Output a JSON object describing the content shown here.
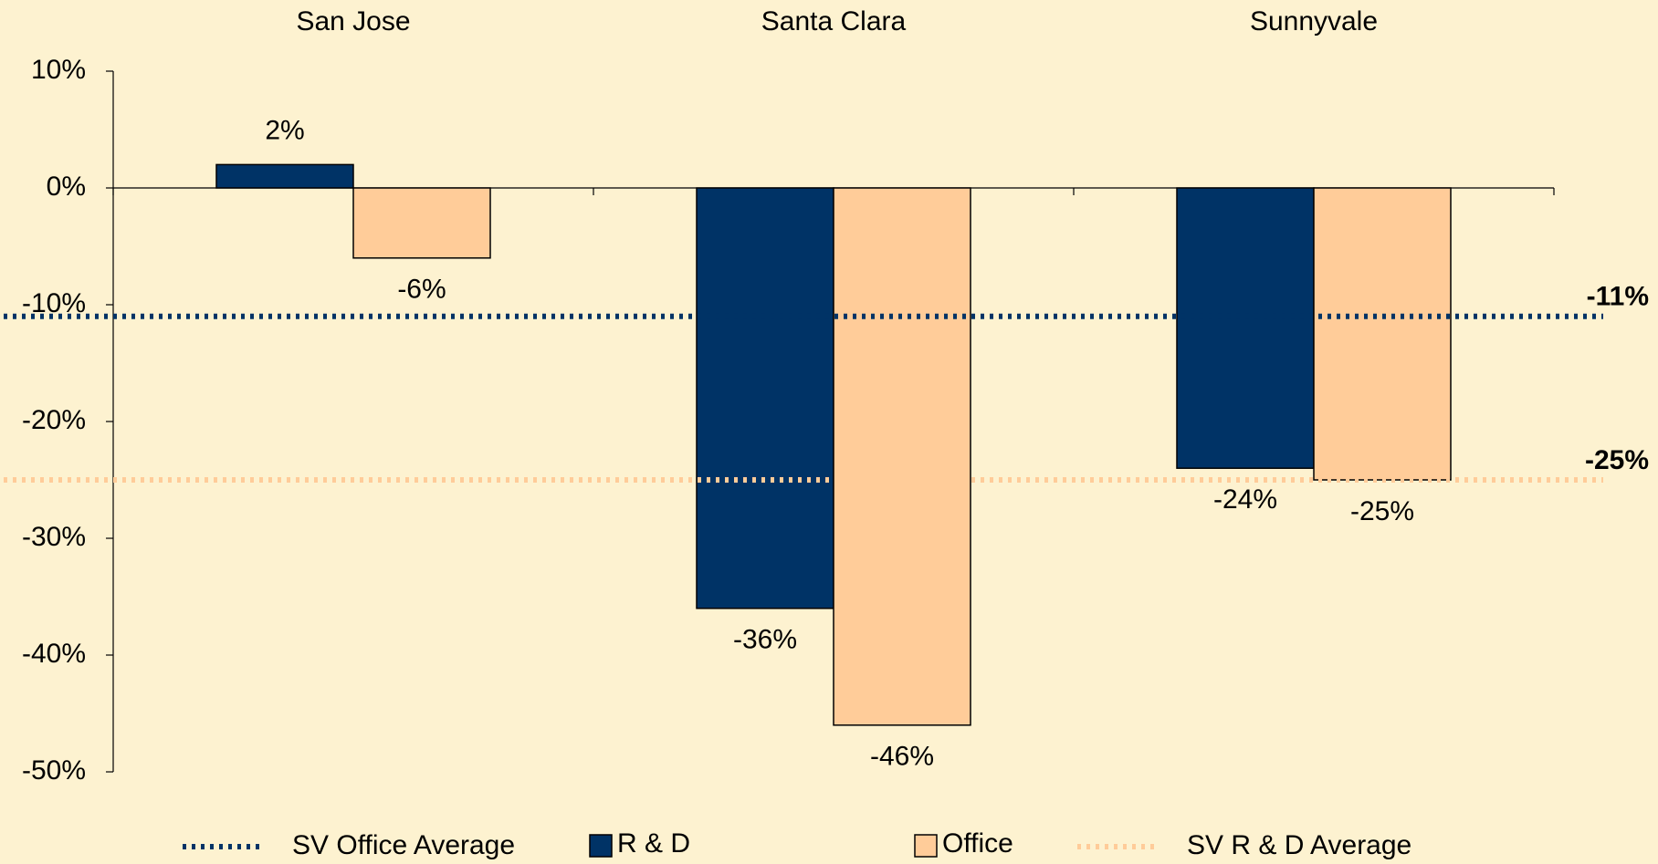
{
  "chart_data": {
    "type": "bar",
    "categories": [
      "San Jose",
      "Santa Clara",
      "Sunnyvale"
    ],
    "series": [
      {
        "name": "R & D",
        "color": "#003366",
        "values": [
          2,
          -36,
          -24
        ],
        "value_labels": [
          "2%",
          "-36%",
          "-24%"
        ]
      },
      {
        "name": "Office",
        "color": "#FFCC99",
        "values": [
          -6,
          -46,
          -25
        ],
        "value_labels": [
          "-6%",
          "-46%",
          "-25%"
        ]
      }
    ],
    "reference_lines": [
      {
        "name": "SV Office Average",
        "value": -11,
        "label": "-11%",
        "color": "#003366"
      },
      {
        "name": "SV R & D Average",
        "value": -25,
        "label": "-25%",
        "color": "#FFCC99"
      }
    ],
    "ylim": [
      -50,
      10
    ],
    "yticks": [
      {
        "value": 10,
        "label": "10%"
      },
      {
        "value": 0,
        "label": "0%"
      },
      {
        "value": -10,
        "label": "-10%"
      },
      {
        "value": -20,
        "label": "-20%"
      },
      {
        "value": -30,
        "label": "-30%"
      },
      {
        "value": -40,
        "label": "-40%"
      },
      {
        "value": -50,
        "label": "-50%"
      }
    ],
    "grid": false,
    "legend": "bottom"
  }
}
